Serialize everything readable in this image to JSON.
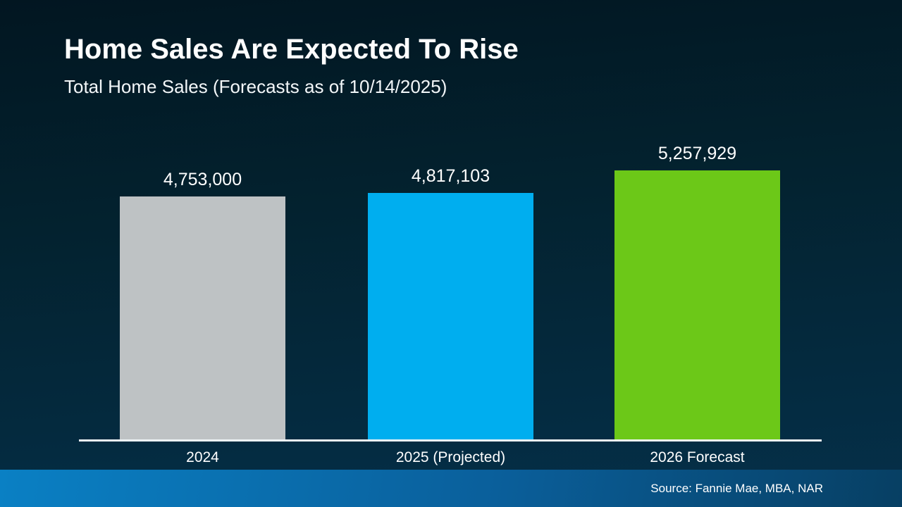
{
  "chart_data": {
    "type": "bar",
    "title": "Home Sales Are Expected To Rise",
    "subtitle": "Total Home Sales (Forecasts as of 10/14/2025)",
    "categories": [
      "2024",
      "2025 (Projected)",
      "2026 Forecast"
    ],
    "values": [
      4753000,
      4817103,
      5257929
    ],
    "value_labels": [
      "4,753,000",
      "4,817,103",
      "5,257,929"
    ],
    "bar_colors": [
      "#bec2c4",
      "#00aeef",
      "#6cc818"
    ],
    "xlabel": "",
    "ylabel": "",
    "ylim": [
      0,
      6500000
    ],
    "grid": false,
    "legend": false,
    "axis_line_color": "#eef3f5"
  },
  "footer": {
    "source": "Source: Fannie Mae, MBA, NAR",
    "gradient_left": "#0a80c4",
    "gradient_mid": "#0a5f9b",
    "gradient_right": "#073f63"
  },
  "colors": {
    "background_top": "#021621",
    "background_bottom": "#05304a",
    "text": "#ffffff"
  }
}
